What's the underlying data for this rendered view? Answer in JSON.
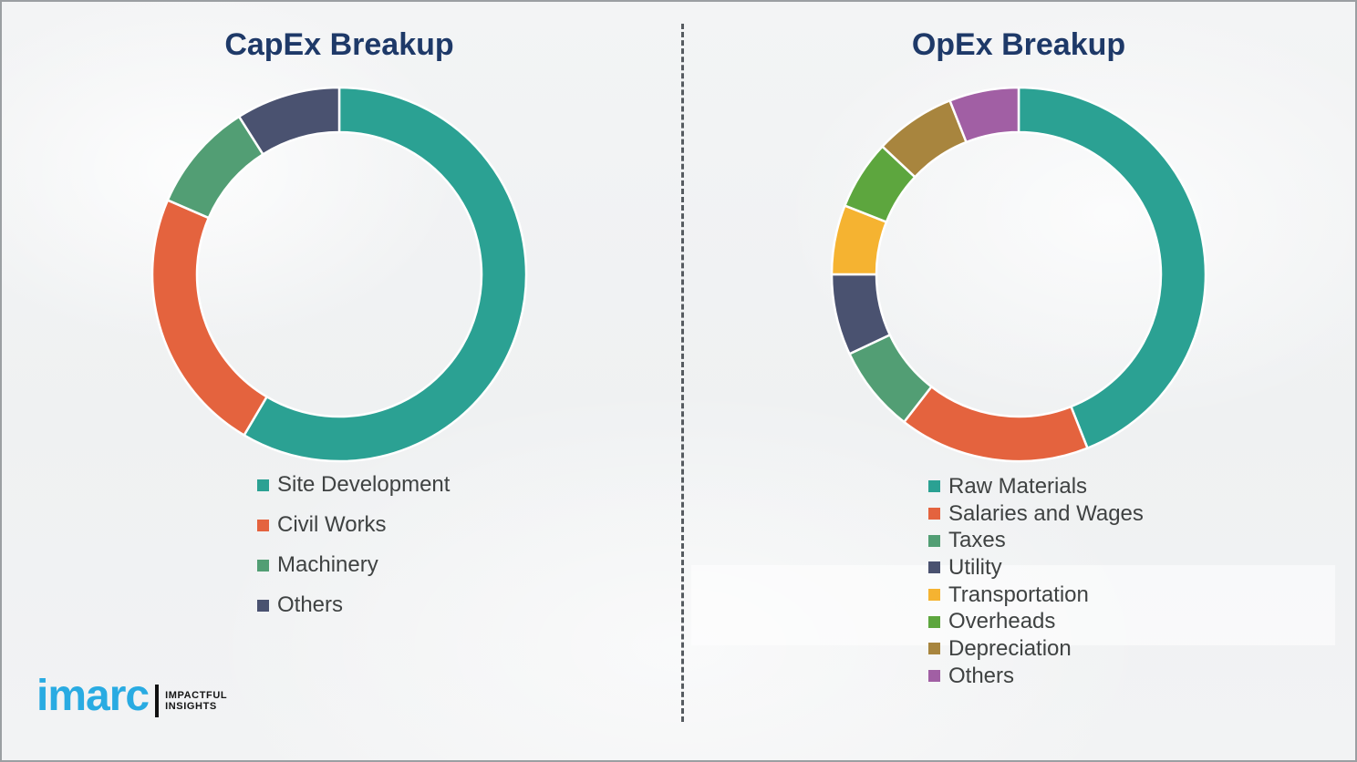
{
  "page": {
    "background_color": "#f0f1f3",
    "border_color": "#9b9fa2",
    "divider_color": "#565b60",
    "legend_text_color": "#3f4242",
    "title_color": "#1e3968"
  },
  "chart_data": [
    {
      "type": "pie",
      "subtype": "donut",
      "title": "CapEx Breakup",
      "categories": [
        "Site Development",
        "Civil Works",
        "Machinery",
        "Others"
      ],
      "values": [
        58.5,
        23,
        9.5,
        9
      ],
      "colors": [
        "#2ba193",
        "#e4633e",
        "#529e74",
        "#4a5270"
      ],
      "start_angle_deg": 0,
      "direction": "clockwise",
      "legend_position": "below-left",
      "data_labels": "none",
      "units": "percent (estimated, no labels shown)"
    },
    {
      "type": "pie",
      "subtype": "donut",
      "title": "OpEx Breakup",
      "categories": [
        "Raw Materials",
        "Salaries and Wages",
        "Taxes",
        "Utility",
        "Transportation",
        "Overheads",
        "Depreciation",
        "Others"
      ],
      "values": [
        44,
        16.5,
        7.5,
        7,
        6,
        6,
        7,
        6
      ],
      "colors": [
        "#2ba193",
        "#e4633e",
        "#529e74",
        "#4a5270",
        "#f5b331",
        "#5da63e",
        "#a8853e",
        "#a15fa4"
      ],
      "start_angle_deg": 0,
      "direction": "clockwise",
      "legend_position": "below-left",
      "data_labels": "none",
      "units": "percent (estimated, no labels shown)"
    }
  ],
  "logo": {
    "brand": "imarc",
    "brand_color": "#29abe2",
    "tagline_line1": "IMPACTFUL",
    "tagline_line2": "INSIGHTS",
    "tagline_color": "#141414"
  }
}
